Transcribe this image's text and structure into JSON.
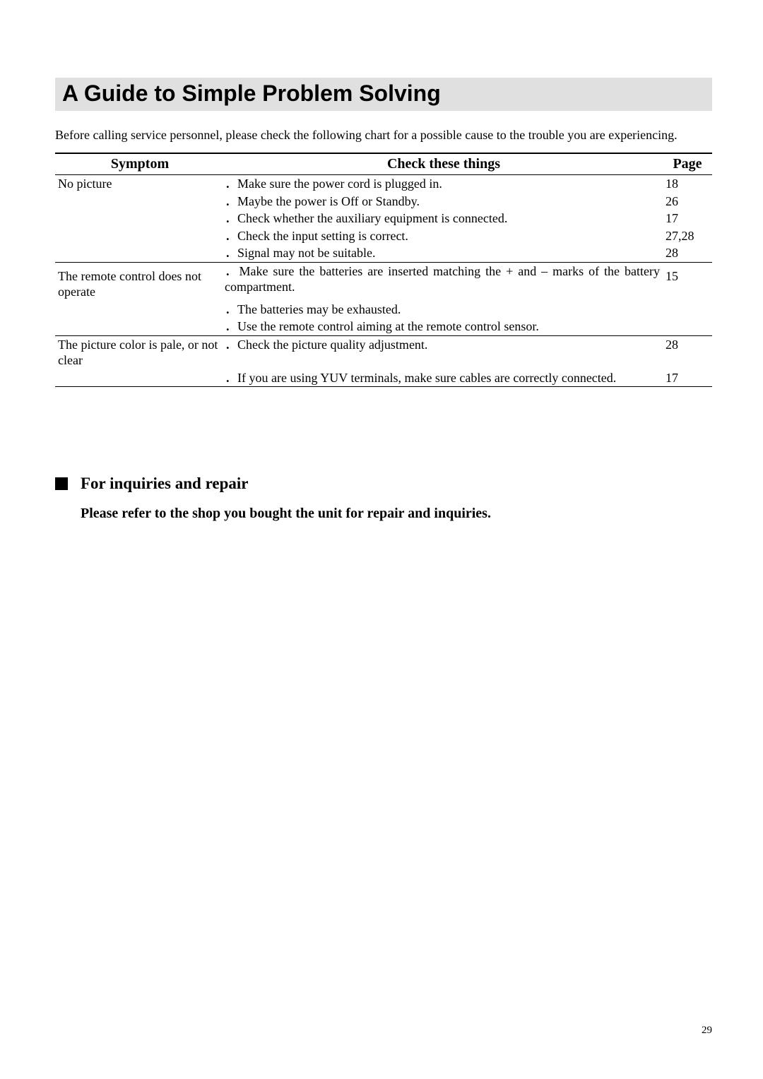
{
  "title": "A Guide to Simple Problem Solving",
  "intro": "Before calling service personnel, please check the following chart for a possible cause to the trouble you are experiencing.",
  "table": {
    "headers": {
      "symptom": "Symptom",
      "check": "Check these things",
      "page": "Page"
    },
    "rows": [
      {
        "symptom": "No picture",
        "check": "．Make sure the power cord is plugged in.",
        "page": "18",
        "justify": false,
        "section_top": false
      },
      {
        "symptom": "",
        "check": "．Maybe the power is Off or Standby.",
        "page": "26",
        "justify": false,
        "section_top": false
      },
      {
        "symptom": "",
        "check": "．Check whether the auxiliary equipment is connected.",
        "page": "17",
        "justify": false,
        "section_top": false
      },
      {
        "symptom": "",
        "check": "．Check the input setting is correct.",
        "page": "27,28",
        "justify": false,
        "section_top": false
      },
      {
        "symptom": "",
        "check": "．Signal may not be suitable.",
        "page": "28",
        "justify": false,
        "section_top": false
      },
      {
        "symptom": "The remote control does not operate",
        "check": "．Make sure the batteries are inserted matching the + and – marks of the battery compartment.",
        "page": "15",
        "justify": true,
        "section_top": true
      },
      {
        "symptom": "",
        "check": "．The batteries may be exhausted.",
        "page": "",
        "justify": false,
        "section_top": false
      },
      {
        "symptom": "",
        "check": "．Use the remote control aiming at the remote control sensor.",
        "page": "",
        "justify": false,
        "section_top": false
      },
      {
        "symptom": "The picture color is pale, or not clear",
        "check": "．Check the picture quality adjustment.",
        "page": "28",
        "justify": false,
        "section_top": true
      },
      {
        "symptom": "",
        "check": "．If you are using YUV terminals, make sure cables are correctly connected.",
        "page": "17",
        "justify": true,
        "section_top": false,
        "section_bottom": true
      }
    ]
  },
  "inquiries": {
    "heading": "For inquiries and repair",
    "body": "Please refer to the shop you bought the unit for repair and inquiries."
  },
  "page_number": "29"
}
